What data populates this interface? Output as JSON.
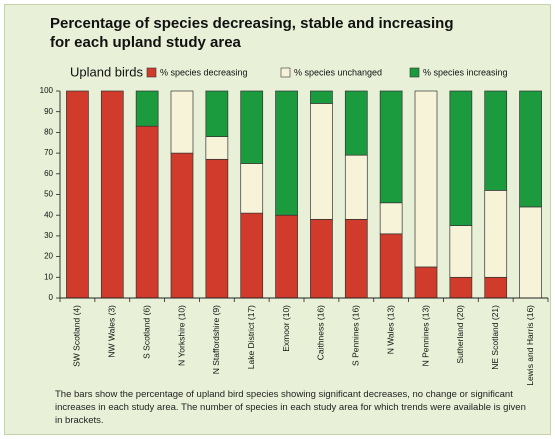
{
  "chart_data": {
    "type": "stacked-bar",
    "title": "Percentage of species decreasing, stable and increasing for each upland study area",
    "label": "Upland birds",
    "caption": "The bars show the percentage of upland bird species showing significant decreases, no change or significant increases in each study area. The number of species in each study area for which trends were available is given in brackets.",
    "categories": [
      "SW Scotland (4)",
      "NW Wales (3)",
      "S Scotland (6)",
      "N Yorkshire (10)",
      "N Staffordshire (9)",
      "Lake District (17)",
      "Exmoor (10)",
      "Caithness (16)",
      "S Pennines (16)",
      "N Wales (13)",
      "N Pennines (13)",
      "Sutherland (20)",
      "NE Scotland (21)",
      "Lewis and Harris (16)"
    ],
    "series": [
      {
        "name": "% species decreasing",
        "color": "#d13b2b",
        "values": [
          100,
          100,
          83,
          70,
          67,
          41,
          40,
          38,
          38,
          31,
          15,
          10,
          10,
          0
        ]
      },
      {
        "name": "% species unchanged",
        "color": "#f7f3d9",
        "values": [
          0,
          0,
          0,
          30,
          11,
          24,
          0,
          56,
          31,
          15,
          85,
          25,
          42,
          44
        ]
      },
      {
        "name": "% species increasing",
        "color": "#1b9a3e",
        "values": [
          0,
          0,
          17,
          0,
          22,
          35,
          60,
          6,
          31,
          54,
          0,
          65,
          48,
          56
        ]
      }
    ],
    "ylim": [
      0,
      100
    ],
    "yticks": [
      0,
      10,
      20,
      30,
      40,
      50,
      60,
      70,
      80,
      90,
      100
    ]
  }
}
